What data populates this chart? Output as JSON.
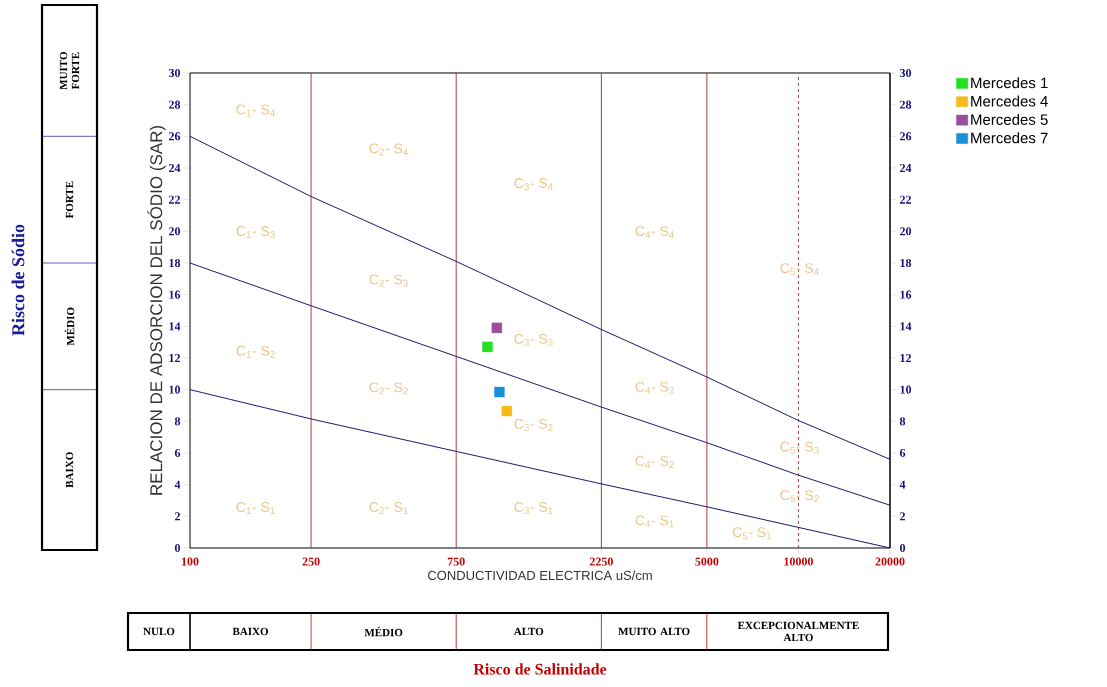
{
  "chart_data": {
    "type": "scatter",
    "xlabel": "CONDUCTIVIDAD ELECTRICA uS/cm",
    "ylabel": "RELACION DE ADSORCION DEL SÓDIO (SAR)",
    "log": "x",
    "xlim": [
      100,
      20000
    ],
    "xticks": [
      100,
      250,
      750,
      2250,
      5000,
      10000,
      20000
    ],
    "ylim": [
      0,
      30
    ],
    "yticks": [
      0,
      2,
      4,
      6,
      8,
      10,
      12,
      14,
      16,
      18,
      20,
      22,
      24,
      26,
      28,
      30
    ],
    "y2lim": [
      0,
      30
    ],
    "y2ticks": [
      0,
      2,
      4,
      6,
      8,
      10,
      12,
      14,
      16,
      18,
      20,
      22,
      24,
      26,
      28,
      30
    ],
    "marker": "square",
    "legend": "top right",
    "grid": false,
    "series": [
      {
        "name": "Mercedes 1",
        "color": "#22e022",
        "x": [
          950
        ],
        "values": [
          12.7
        ]
      },
      {
        "name": "Mercedes 4",
        "color": "#f5bb1a",
        "x": [
          1100
        ],
        "values": [
          8.65
        ]
      },
      {
        "name": "Mercedes 5",
        "color": "#9b4f9b",
        "x": [
          1020
        ],
        "values": [
          13.9
        ]
      },
      {
        "name": "Mercedes 7",
        "color": "#1a8fd8",
        "x": [
          1040
        ],
        "values": [
          9.85
        ]
      },
      {
        "type": "line",
        "marker": "none",
        "color": "#1a1a6e",
        "x": [
          100,
          250,
          750,
          2250,
          5000,
          10000,
          20000
        ],
        "values": [
          10,
          8.15,
          6.1,
          4.05,
          2.6,
          1.3,
          0
        ]
      },
      {
        "type": "line",
        "marker": "none",
        "color": "#1a1a6e",
        "x": [
          100,
          250,
          750,
          2250,
          5000,
          10000,
          20000
        ],
        "values": [
          18,
          15.3,
          12.1,
          8.9,
          6.65,
          4.6,
          2.7
        ]
      },
      {
        "type": "line",
        "marker": "none",
        "color": "#1a1a6e",
        "x": [
          100,
          250,
          750,
          2250,
          5000,
          10000,
          20000
        ],
        "values": [
          26,
          22.2,
          18.1,
          13.8,
          10.8,
          8.05,
          5.6
        ]
      }
    ],
    "ref_lines": [
      {
        "axis": "x",
        "value": 250,
        "color": "#a52a2a",
        "line_style": "solid"
      },
      {
        "axis": "x",
        "value": 750,
        "color": "#a52a2a",
        "line_style": "solid"
      },
      {
        "axis": "x",
        "value": 2250,
        "color": "#a52a2a",
        "line_style": "solid"
      },
      {
        "axis": "x",
        "value": 5000,
        "color": "#a52a2a",
        "line_style": "solid"
      },
      {
        "axis": "x",
        "value": 10000,
        "color": "#a52a2a",
        "line_style": "dashed"
      }
    ],
    "annotations": [
      "C$_{1}$- S$_{4}$",
      "C$_{2}$- S$_{4}$",
      "C$_{3}$- S$_{4}$",
      "C$_{4}$- S$_{4}$",
      "C$_{5}$- S$_{4}$",
      "C$_{1}$- S$_{3}$",
      "C$_{2}$- S$_{3}$",
      "C$_{3}$- S$_{3}$",
      "C$_{4}$- S$_{3}$",
      "C$_{5}$- S$_{3}$",
      "C$_{1}$- S$_{2}$",
      "C$_{2}$- S$_{2}$",
      "C$_{3}$- S$_{2}$",
      "C$_{4}$- S$_{2}$",
      "C$_{5}$- S$_{2}$",
      "C$_{1}$- S$_{1}$",
      "C$_{2}$- S$_{1}$",
      "C$_{3}$- S$_{1}$",
      "C$_{4}$- S$_{1}$",
      "C$_{5}$- S$_{1}$",
      "Risco de Sódio",
      "BAIXO",
      "MÉDIO",
      "FORTE",
      "MUITO FORTE",
      "Risco de Salinidade",
      "NULO",
      "BAIXO",
      "MÉDIO",
      "ALTO",
      "MUITO ALTO",
      "EXCEPCIONALMENTE ALTO"
    ]
  }
}
